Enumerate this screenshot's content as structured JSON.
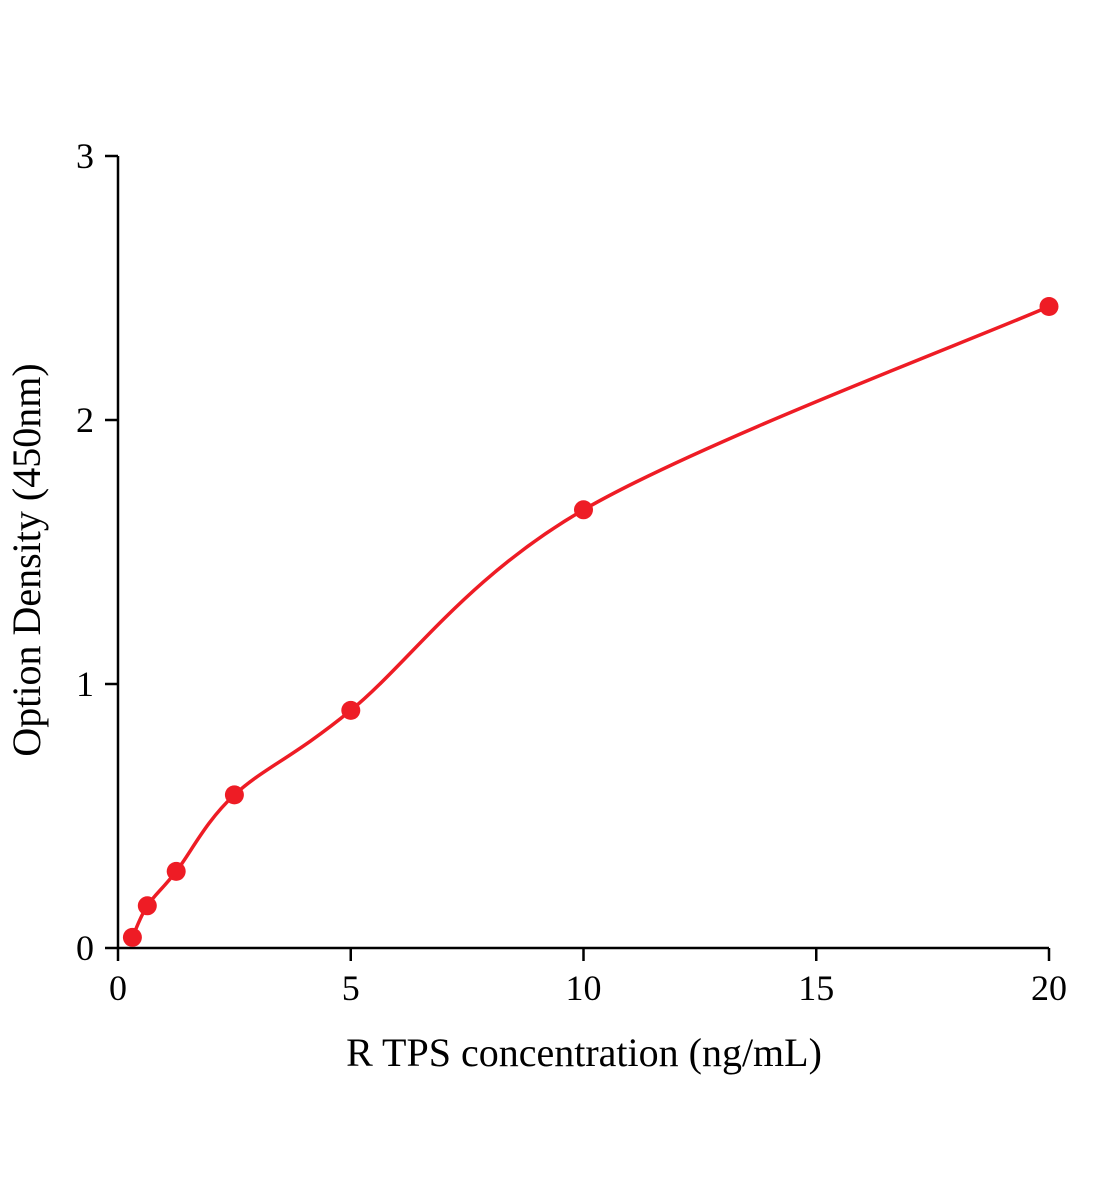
{
  "chart_data": {
    "type": "scatter",
    "title": "",
    "xlabel": "R TPS concentration (ng/mL)",
    "ylabel": "Option Density (450nm)",
    "x": [
      0.31,
      0.63,
      1.25,
      2.5,
      5,
      10,
      20
    ],
    "y": [
      0.04,
      0.16,
      0.29,
      0.58,
      0.9,
      1.66,
      2.43
    ],
    "xlim": [
      0,
      20
    ],
    "ylim": [
      0,
      3
    ],
    "x_ticks": [
      0,
      5,
      10,
      15,
      20
    ],
    "y_ticks": [
      0,
      1,
      2,
      3
    ],
    "grid": false,
    "legend": "none",
    "line": true,
    "point_color": "#ee1c25",
    "line_color": "#ee1c25",
    "axis_color": "#000000",
    "background_color": "#ffffff"
  }
}
